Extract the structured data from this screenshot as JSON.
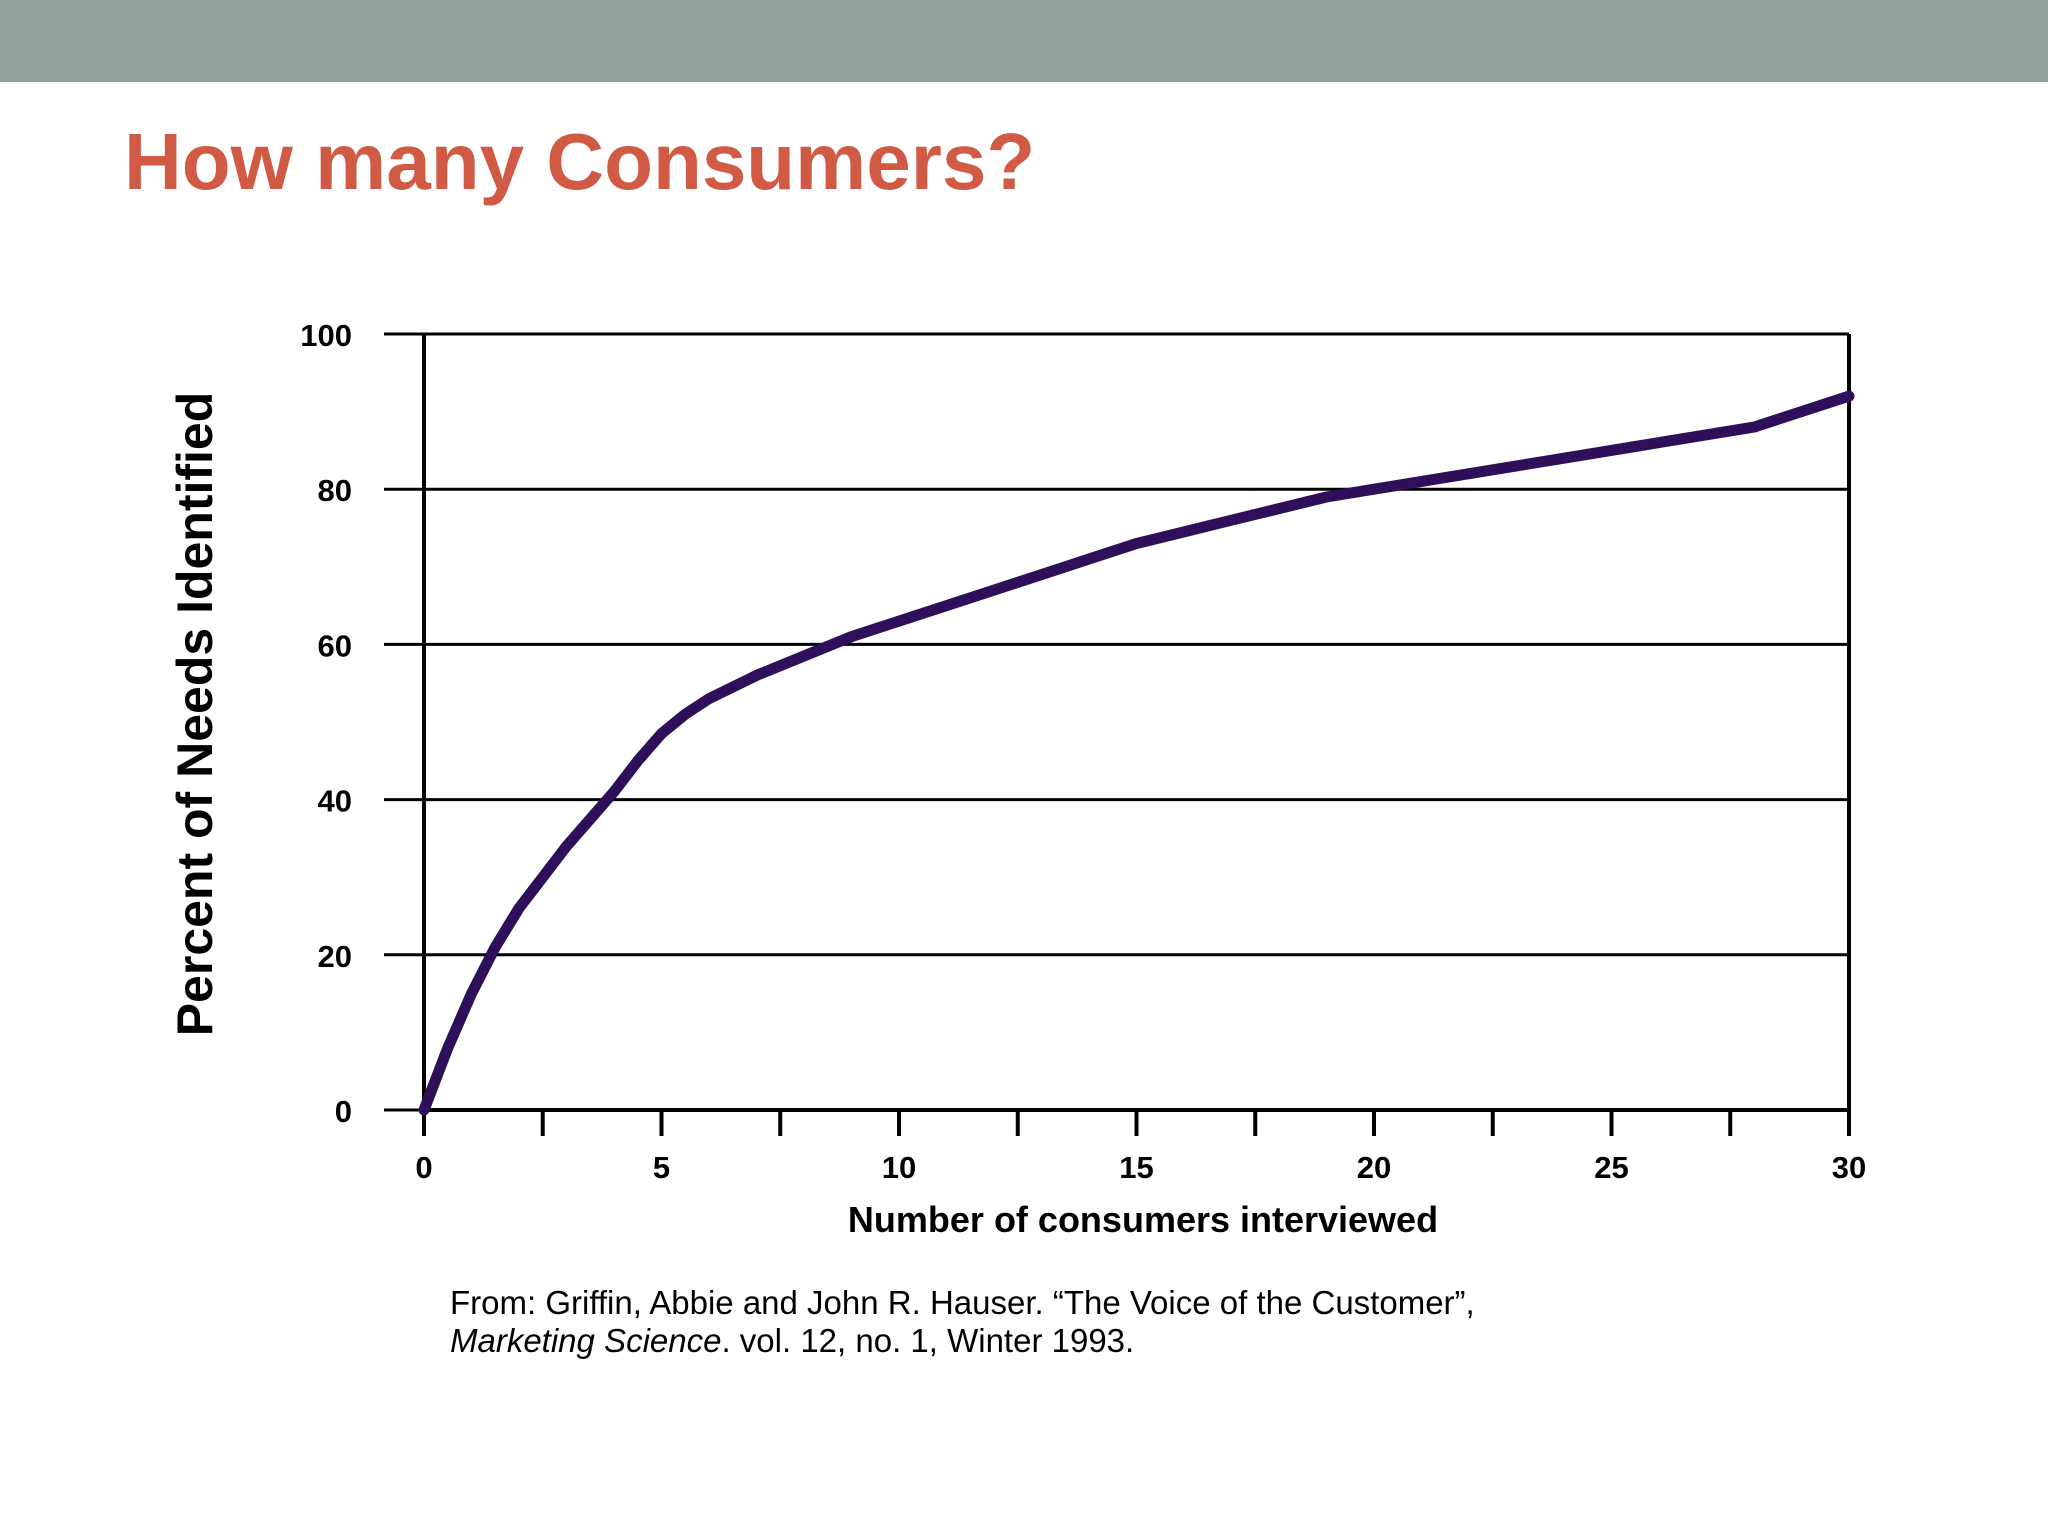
{
  "slide": {
    "title": "How many Consumers?",
    "header_bar_color": "#94A398",
    "title_color": "#D05A44"
  },
  "chart_data": {
    "type": "line",
    "title": "",
    "xlabel": "Number of consumers interviewed",
    "ylabel": "Percent of Needs Identified",
    "xlim": [
      0,
      30
    ],
    "ylim": [
      0,
      100
    ],
    "x_ticks": [
      0,
      5,
      10,
      15,
      20,
      25,
      30
    ],
    "y_ticks": [
      0,
      20,
      40,
      60,
      80,
      100
    ],
    "x_minor_ticks": [
      2.5,
      7.5,
      12.5,
      17.5,
      22.5,
      27.5
    ],
    "grid": "horizontal",
    "legend": "none",
    "series": [
      {
        "color": "#2E0F5A",
        "x": [
          0,
          0.5,
          1,
          1.5,
          2,
          2.5,
          3,
          3.5,
          4,
          4.5,
          5,
          5.5,
          6,
          7,
          8,
          9,
          10,
          11,
          12,
          13,
          14,
          15,
          16,
          17,
          18,
          19,
          20,
          22,
          24,
          26,
          28,
          30
        ],
        "y": [
          0,
          8,
          15,
          21,
          26,
          30,
          34,
          37.5,
          41,
          45,
          48.5,
          51,
          53,
          56,
          58.5,
          61,
          63,
          65,
          67,
          69,
          71,
          73,
          74.5,
          76,
          77.5,
          79,
          80,
          82,
          84,
          86,
          88,
          92
        ]
      }
    ]
  },
  "citation": {
    "line1": "From: Griffin, Abbie and John R. Hauser. “The Voice of the Customer”,",
    "journal": "Marketing Science",
    "line2_rest": ". vol. 12, no. 1, Winter 1993."
  }
}
